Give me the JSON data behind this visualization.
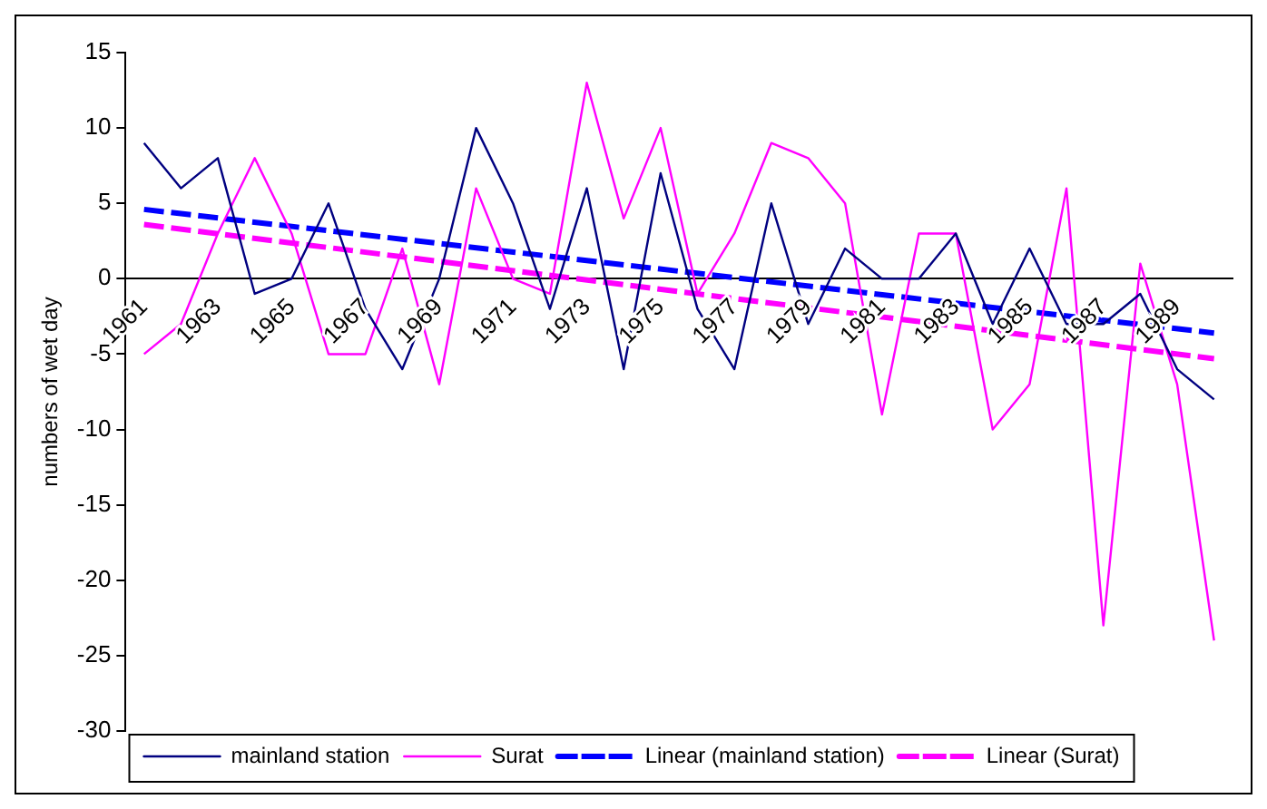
{
  "chart_data": {
    "type": "line",
    "ylabel": "numbers of wet day",
    "categories": [
      "1961",
      null,
      "1963",
      null,
      "1965",
      null,
      "1967",
      null,
      "1969",
      null,
      "1971",
      null,
      "1973",
      null,
      "1975",
      null,
      "1977",
      null,
      "1979",
      null,
      "1981",
      null,
      "1983",
      null,
      "1985",
      null,
      "1987",
      null,
      "1989",
      null
    ],
    "series": [
      {
        "name": "mainland station",
        "color": "#000080",
        "values": [
          9,
          6,
          8,
          -1,
          0,
          5,
          -2,
          -6,
          0,
          10,
          5,
          -2,
          6,
          -6,
          7,
          -2,
          -6,
          5,
          -3,
          2,
          0,
          0,
          3,
          -3,
          2,
          -3,
          -3,
          -1,
          -6,
          -8
        ]
      },
      {
        "name": "Surat",
        "color": "#ff00ff",
        "values": [
          -5,
          -3,
          3,
          8,
          3,
          -5,
          -5,
          2,
          -7,
          6,
          0,
          -1,
          13,
          4,
          10,
          -1,
          3,
          9,
          8,
          5,
          -9,
          3,
          3,
          -10,
          -7,
          6,
          -23,
          1,
          -7,
          -24
        ]
      },
      {
        "name": "Linear (mainland station)",
        "color": "#0000ff",
        "line_style": "dashed",
        "values": [
          4.6,
          null,
          null,
          null,
          null,
          null,
          null,
          null,
          null,
          null,
          null,
          null,
          null,
          null,
          null,
          null,
          null,
          null,
          null,
          null,
          null,
          null,
          null,
          null,
          null,
          null,
          null,
          null,
          null,
          -3.6
        ]
      },
      {
        "name": "Linear (Surat)",
        "color": "#ff00ff",
        "line_style": "dashed",
        "values": [
          3.6,
          null,
          null,
          null,
          null,
          null,
          null,
          null,
          null,
          null,
          null,
          null,
          null,
          null,
          null,
          null,
          null,
          null,
          null,
          null,
          null,
          null,
          null,
          null,
          null,
          null,
          null,
          null,
          null,
          -5.3
        ]
      }
    ],
    "ylim": [
      -30,
      15
    ],
    "yticks": [
      -30,
      -25,
      -20,
      -15,
      -10,
      -5,
      0,
      5,
      10,
      15
    ],
    "grid": false,
    "legend": "bottom",
    "marker": "none",
    "line_style": "solid"
  }
}
